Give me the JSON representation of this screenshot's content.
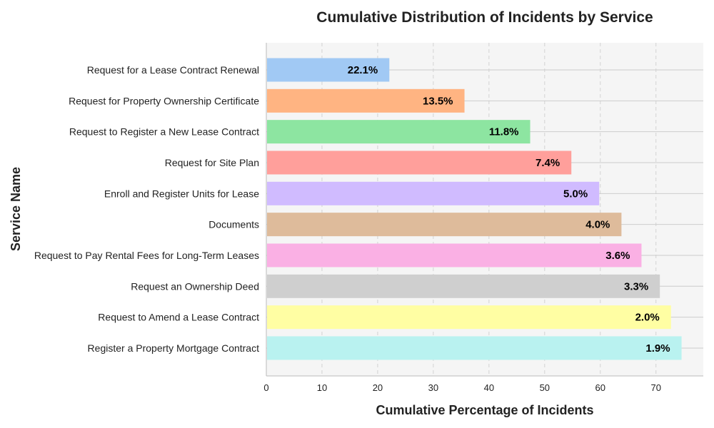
{
  "chart_data": {
    "type": "bar",
    "orientation": "horizontal",
    "title": "Cumulative Distribution of Incidents by Service",
    "xlabel": "Cumulative Percentage of Incidents",
    "ylabel": "Service Name",
    "xlim": [
      0,
      78.5
    ],
    "xticks": [
      0,
      10,
      20,
      30,
      40,
      50,
      60,
      70
    ],
    "grid": true,
    "categories": [
      "Request for a Lease Contract Renewal",
      "Request for Property Ownership Certificate",
      "Request to Register a New Lease Contract",
      "Request for Site Plan",
      "Enroll and Register Units for Lease",
      "Documents",
      "Request to Pay Rental Fees for Long-Term Leases",
      "Request an Ownership Deed",
      "Request to Amend a Lease Contract",
      "Register a Property Mortgage Contract"
    ],
    "values": [
      22.1,
      35.6,
      47.4,
      54.8,
      59.8,
      63.8,
      67.4,
      70.7,
      72.7,
      74.6
    ],
    "labels": [
      "22.1%",
      "13.5%",
      "11.8%",
      "7.4%",
      "5.0%",
      "4.0%",
      "3.6%",
      "3.3%",
      "2.0%",
      "1.9%"
    ],
    "colors": [
      "#a1c9f4",
      "#ffb482",
      "#8de5a1",
      "#ff9f9b",
      "#d0bbff",
      "#debb9b",
      "#fab0e4",
      "#cfcfcf",
      "#fffea3",
      "#b9f2f0"
    ],
    "plot_background": "#f5f5f5"
  }
}
